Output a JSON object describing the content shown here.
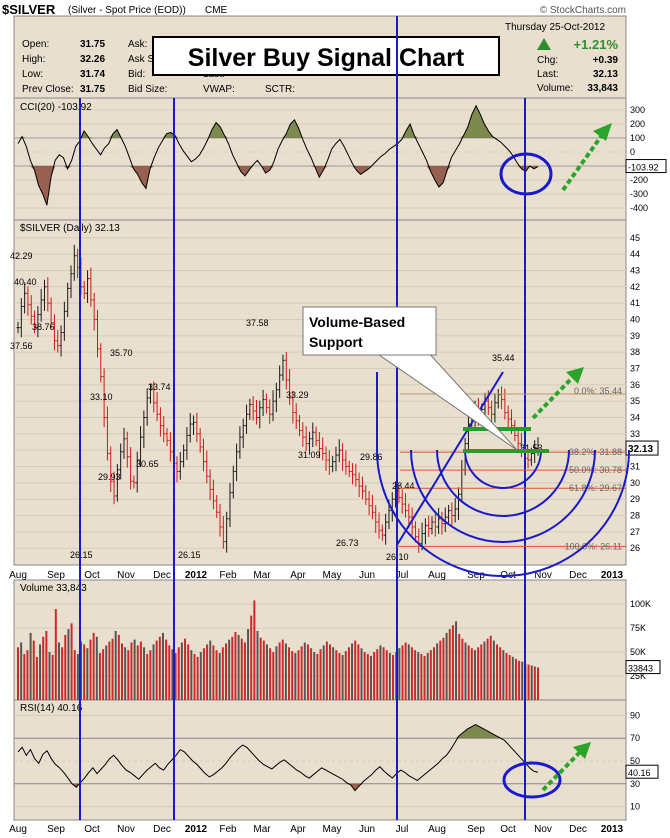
{
  "header": {
    "symbol": "$SILVER",
    "description": "(Silver - Spot Price (EOD))",
    "exchange": "CME",
    "copyright": "© StockCharts.com",
    "date": "Thursday  25-Oct-2012",
    "change_pct": "+1.21%",
    "up_color": "#2f8f2f"
  },
  "quote": {
    "left_labels": [
      "Open:",
      "High:",
      "Low:",
      "Prev Close:"
    ],
    "left_values": [
      "31.75",
      "32.26",
      "31.74",
      "31.75"
    ],
    "mid_labels": [
      "Ask:",
      "Ask S",
      "Bid:",
      "Bid Size:"
    ],
    "right_labels": [
      "",
      "",
      "Last:",
      "VWAP:"
    ],
    "sctr": "SCTR:",
    "stat_labels": [
      "Chg:",
      "Last:",
      "Volume:"
    ],
    "stat_values": [
      "+0.39",
      "32.13",
      "33,843"
    ]
  },
  "title_box": {
    "text": "Silver Buy Signal Chart"
  },
  "annotation": {
    "text_line1": "Volume-Based",
    "text_line2": "Support"
  },
  "chart_data": [
    {
      "type": "line",
      "panel": "cci",
      "legend": "CCI(20) -103.92",
      "yticks": [
        300,
        200,
        100,
        0,
        -100,
        -200,
        -300,
        -400
      ],
      "ylim": [
        -450,
        350
      ],
      "last_value": "-103.92",
      "fill_above_color": "#6b7a3a",
      "fill_below_color": "#8a4a3a",
      "values": [
        60,
        110,
        40,
        -60,
        -130,
        -240,
        -300,
        -380,
        -180,
        -60,
        -20,
        -40,
        -120,
        -60,
        40,
        80,
        150,
        110,
        60,
        20,
        -20,
        30,
        60,
        130,
        160,
        100,
        40,
        -40,
        -120,
        -160,
        -220,
        -260,
        -120,
        -40,
        30,
        80,
        130,
        140,
        120,
        60,
        10,
        -30,
        -70,
        -50,
        -20,
        30,
        90,
        160,
        210,
        180,
        120,
        60,
        -20,
        -80,
        -140,
        -170,
        -130,
        -90,
        -60,
        -100,
        -150,
        -130,
        -70,
        20,
        80,
        130,
        200,
        230,
        170,
        90,
        20,
        -40,
        -110,
        -180,
        -130,
        -60,
        20,
        60,
        90,
        40,
        -20,
        -80,
        -130,
        -160,
        -140,
        -120,
        -90,
        -60,
        -30,
        -10,
        20,
        40,
        60,
        90,
        150,
        200,
        120,
        60,
        0,
        -60,
        -140,
        -200,
        -250,
        -220,
        -130,
        -40,
        10,
        60,
        120,
        180,
        270,
        330,
        270,
        200,
        150,
        110,
        90,
        70,
        40,
        10,
        -30,
        -80,
        -120,
        -140,
        -100,
        -120,
        -104
      ]
    },
    {
      "type": "candlestick",
      "panel": "price",
      "legend": "$SILVER (Daily) 32.13",
      "yticks": [
        45,
        44,
        43,
        42,
        41,
        40,
        39,
        38,
        37,
        36,
        35,
        34,
        33,
        32,
        31,
        30,
        29,
        28,
        27,
        26
      ],
      "ylim": [
        25.4,
        45.6
      ],
      "last_value": "32.13",
      "up_color": "#1a1a1a",
      "down_color": "#cc1a1a",
      "close": [
        39.5,
        40.8,
        41.6,
        40.9,
        40.2,
        39.5,
        40.3,
        41.2,
        42.0,
        41.0,
        39.8,
        38.7,
        38.4,
        39.2,
        40.5,
        41.9,
        42.8,
        43.9,
        43.2,
        42.0,
        41.6,
        42.5,
        41.2,
        40.0,
        38.2,
        36.5,
        34.0,
        31.8,
        30.1,
        29.2,
        30.8,
        31.9,
        32.7,
        31.6,
        30.1,
        30.0,
        31.4,
        32.8,
        34.0,
        35.2,
        35.7,
        34.9,
        34.2,
        33.5,
        33.0,
        32.6,
        31.9,
        31.2,
        30.7,
        31.3,
        32.0,
        32.9,
        33.6,
        33.7,
        33.0,
        32.2,
        31.3,
        30.4,
        29.6,
        28.9,
        28.2,
        27.3,
        26.4,
        27.8,
        29.4,
        30.7,
        31.9,
        32.8,
        33.5,
        34.2,
        34.8,
        34.4,
        34.0,
        34.6,
        35.1,
        34.6,
        34.2,
        35.0,
        35.7,
        36.6,
        37.5,
        36.3,
        35.2,
        34.3,
        33.8,
        33.2,
        32.8,
        32.4,
        32.7,
        33.1,
        32.6,
        32.1,
        31.8,
        31.4,
        31.0,
        31.3,
        31.7,
        32.0,
        31.4,
        31.0,
        30.7,
        30.5,
        30.2,
        29.8,
        29.5,
        29.0,
        28.6,
        28.2,
        27.6,
        27.1,
        26.8,
        27.6,
        28.3,
        29.0,
        29.5,
        29.1,
        28.7,
        28.3,
        27.9,
        27.3,
        26.7,
        26.3,
        26.9,
        27.4,
        27.2,
        27.6,
        27.3,
        27.8,
        27.5,
        27.9,
        28.3,
        28.0,
        28.4,
        29.3,
        30.8,
        32.4,
        33.6,
        34.1,
        34.6,
        34.0,
        34.5,
        35.0,
        34.6,
        34.2,
        34.9,
        35.4,
        35.1,
        34.3,
        33.9,
        33.5,
        32.9,
        32.4,
        32.0,
        31.5,
        31.4,
        31.8,
        32.1,
        32.13
      ]
    },
    {
      "type": "bar",
      "panel": "volume",
      "legend": "Volume 33,843",
      "yticks": [
        100000,
        75000,
        50000,
        25000
      ],
      "ytick_labels": [
        "100K",
        "75K",
        "50K",
        "25K"
      ],
      "ylim": [
        0,
        120000
      ],
      "last_value": "33843",
      "values": [
        55,
        60,
        48,
        52,
        70,
        62,
        45,
        58,
        66,
        72,
        50,
        47,
        95,
        60,
        55,
        68,
        74,
        80,
        52,
        48,
        61,
        58,
        54,
        63,
        70,
        66,
        49,
        53,
        57,
        61,
        64,
        72,
        68,
        59,
        55,
        52,
        60,
        63,
        57,
        61,
        55,
        48,
        52,
        58,
        62,
        66,
        70,
        63,
        57,
        53,
        49,
        55,
        60,
        64,
        58,
        52,
        48,
        45,
        50,
        54,
        58,
        62,
        57,
        52,
        49,
        55,
        59,
        63,
        66,
        71,
        68,
        64,
        60,
        74,
        88,
        104,
        72,
        65,
        62,
        58,
        54,
        50,
        56,
        60,
        63,
        59,
        55,
        51,
        49,
        52,
        56,
        60,
        58,
        54,
        50,
        48,
        53,
        57,
        61,
        58,
        55,
        52,
        49,
        47,
        51,
        55,
        59,
        62,
        58,
        54,
        50,
        48,
        46,
        50,
        53,
        57,
        55,
        52,
        49,
        47,
        50,
        54,
        57,
        60,
        58,
        55,
        52,
        50,
        48,
        46,
        49,
        52,
        55,
        59,
        62,
        65,
        70,
        74,
        78,
        82,
        69,
        64,
        60,
        57,
        54,
        52,
        55,
        58,
        61,
        64,
        67,
        62,
        58,
        55,
        52,
        49,
        47,
        45,
        43,
        41,
        40,
        38,
        37,
        36,
        35,
        34
      ]
    },
    {
      "type": "line",
      "panel": "rsi",
      "legend": "RSI(14) 40.16",
      "yticks": [
        90,
        70,
        50,
        30,
        10
      ],
      "ylim": [
        0,
        100
      ],
      "last_value": "40.16",
      "overbought": 70,
      "oversold": 30,
      "values": [
        58,
        62,
        55,
        60,
        52,
        48,
        56,
        59,
        52,
        47,
        44,
        40,
        35,
        30,
        27,
        31,
        35,
        40,
        44,
        39,
        43,
        47,
        52,
        55,
        51,
        46,
        42,
        40,
        37,
        34,
        38,
        42,
        45,
        48,
        44,
        42,
        47,
        51,
        55,
        60,
        58,
        54,
        50,
        47,
        43,
        39,
        36,
        38,
        41,
        44,
        48,
        53,
        57,
        61,
        64,
        62,
        58,
        54,
        50,
        47,
        45,
        43,
        46,
        49,
        51,
        48,
        45,
        42,
        40,
        37,
        35,
        38,
        41,
        44,
        42,
        40,
        38,
        36,
        34,
        31,
        29,
        24,
        28,
        32,
        35,
        38,
        42,
        45,
        41,
        38,
        35,
        39,
        42,
        40,
        37,
        35,
        33,
        36,
        39,
        42,
        45,
        48,
        52,
        55,
        60,
        66,
        72,
        75,
        78,
        80,
        82,
        80,
        78,
        76,
        74,
        72,
        70,
        68,
        64,
        60,
        56,
        52,
        48,
        44,
        41,
        40.16
      ]
    }
  ],
  "axis": {
    "months": [
      "Aug",
      "Sep",
      "Oct",
      "Nov",
      "Dec",
      "2012",
      "Feb",
      "Mar",
      "Apr",
      "May",
      "Jun",
      "Jul",
      "Aug",
      "Sep",
      "Oct",
      "Nov",
      "Dec",
      "2013"
    ]
  },
  "price_labels": [
    "42.29",
    "40.40",
    "38.76",
    "37.56",
    "26.15",
    "35.70",
    "33.10",
    "29.93",
    "30.65",
    "33.74",
    "26.15",
    "37.58",
    "33.29",
    "31.09",
    "26.73",
    "29.86",
    "28.44",
    "26.10",
    "35.44",
    "31.53"
  ],
  "fib_labels": [
    "0.0%: 35.44",
    "38.2%: 31.88",
    "50.0%: 30.78",
    "61.8%: 29.67",
    "100.0%: 26.11"
  ]
}
